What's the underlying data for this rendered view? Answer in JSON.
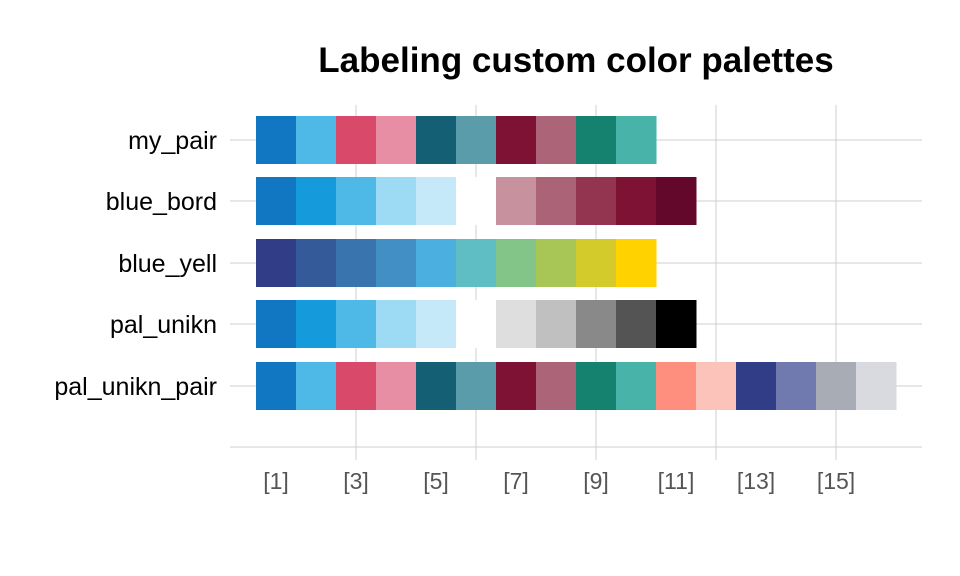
{
  "chart_data": {
    "type": "heatmap",
    "title": "Labeling custom color palettes",
    "xlabel": "",
    "ylabel": "",
    "x_ticks": [
      "[1]",
      "[3]",
      "[5]",
      "[7]",
      "[9]",
      "[11]",
      "[13]",
      "[15]"
    ],
    "grid": true,
    "rows": [
      {
        "name": "my_pair",
        "colors": [
          "#1277C3",
          "#4EB8E6",
          "#D94969",
          "#E88EA4",
          "#145F74",
          "#5A9CA9",
          "#7D1235",
          "#AC6479",
          "#158270",
          "#47B3A9"
        ]
      },
      {
        "name": "blue_bord",
        "colors": [
          "#1277C3",
          "#159ADB",
          "#4EB8E6",
          "#9DDAF3",
          "#C5E9F8",
          "#FFFFFF",
          "#C7919E",
          "#AB6378",
          "#933451",
          "#7D1235",
          "#63082B"
        ]
      },
      {
        "name": "blue_yell",
        "colors": [
          "#313E87",
          "#345A9A",
          "#3974AF",
          "#428FC5",
          "#4BAFDF",
          "#5FBEC4",
          "#83C488",
          "#A8C656",
          "#D3CB2B",
          "#FFD200"
        ]
      },
      {
        "name": "pal_unikn",
        "colors": [
          "#1277C3",
          "#159ADB",
          "#4EB8E6",
          "#9DDAF3",
          "#C5E9F8",
          "#FFFFFF",
          "#DEDEDE",
          "#C0C0C0",
          "#898989",
          "#545454",
          "#000000"
        ]
      },
      {
        "name": "pal_unikn_pair",
        "colors": [
          "#1277C3",
          "#4EB8E6",
          "#D94969",
          "#E88EA4",
          "#145F74",
          "#5A9CA9",
          "#7D1235",
          "#AC6479",
          "#158270",
          "#47B3A9",
          "#FE8E7D",
          "#FCC3BB",
          "#313E87",
          "#717AAF",
          "#A8ACB5",
          "#D9DADF"
        ]
      }
    ]
  }
}
